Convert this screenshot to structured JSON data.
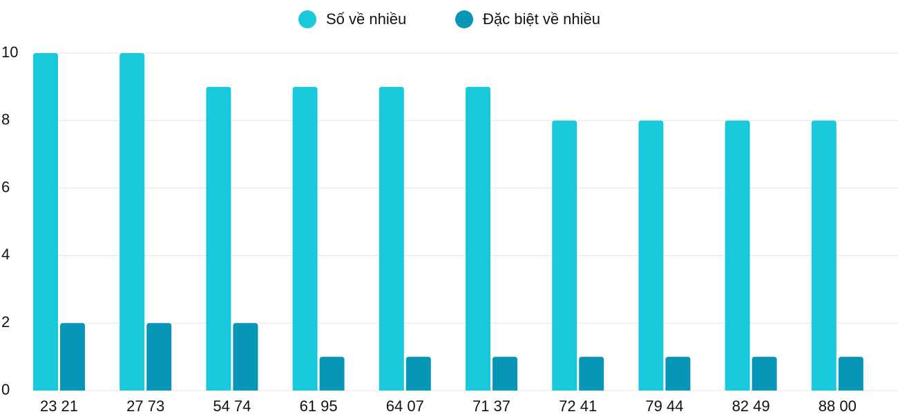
{
  "chart_data": {
    "type": "bar",
    "categories": [
      "23 21",
      "27 73",
      "54 74",
      "61 95",
      "64 07",
      "71 37",
      "72 41",
      "79 44",
      "82 49",
      "88 00"
    ],
    "series": [
      {
        "name": "Số về nhiều",
        "color": "#1ac8db",
        "values": [
          10,
          10,
          9,
          9,
          9,
          9,
          8,
          8,
          8,
          8
        ]
      },
      {
        "name": "Đặc biệt về nhiều",
        "color": "#0795b8",
        "values": [
          2,
          2,
          2,
          1,
          1,
          1,
          1,
          1,
          1,
          1
        ]
      }
    ],
    "ylim": [
      0,
      10
    ],
    "yticks": [
      0,
      2,
      4,
      6,
      8,
      10
    ],
    "grid": true,
    "legend": "top"
  }
}
